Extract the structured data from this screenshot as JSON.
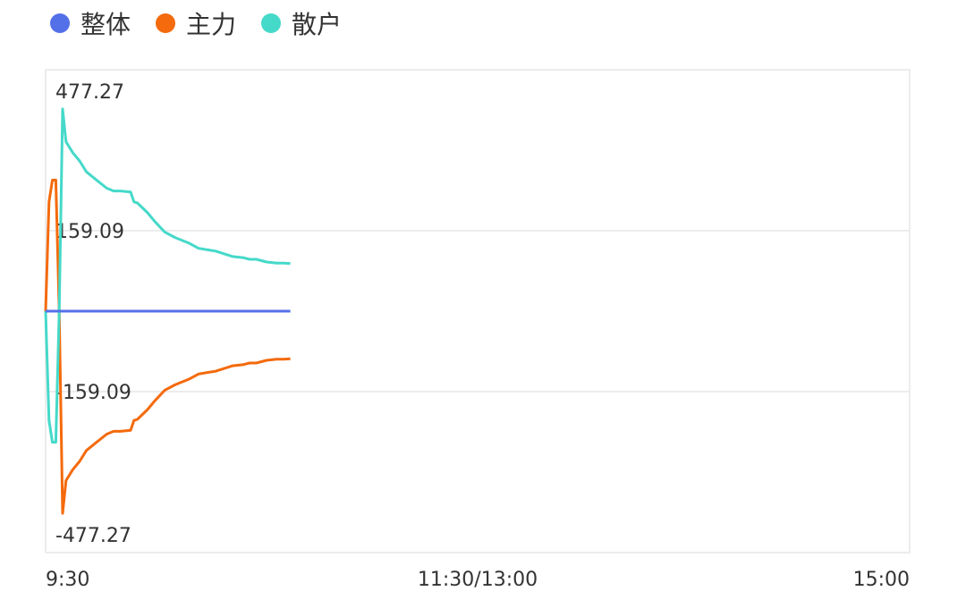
{
  "legend": [
    {
      "name": "整体",
      "color": "#5470e8"
    },
    {
      "name": "主力",
      "color": "#f46a0c"
    },
    {
      "name": "散户",
      "color": "#45d9c9"
    }
  ],
  "chart_data": {
    "type": "line",
    "x_tick_labels": [
      "9:30",
      "11:30/13:00",
      "15:00"
    ],
    "y_tick_labels": [
      "477.27",
      "159.09",
      "-159.09",
      "-477.27"
    ],
    "ylim": [
      -477.27,
      477.27
    ],
    "x_minutes_domain": [
      0,
      240
    ],
    "series": [
      {
        "name": "整体",
        "color": "#5470e8",
        "t": [
          0,
          72
        ],
        "values": [
          0,
          0
        ]
      },
      {
        "name": "主力",
        "color": "#f46a0c",
        "t": [
          0,
          1,
          2,
          3,
          4,
          5,
          6,
          8,
          10,
          12,
          15,
          18,
          20,
          22,
          25,
          26,
          27,
          30,
          32,
          35,
          38,
          40,
          42,
          45,
          48,
          50,
          55,
          58,
          60,
          62,
          65,
          68,
          70,
          72
        ],
        "values": [
          0,
          200,
          240,
          240,
          0,
          -370,
          -310,
          -290,
          -275,
          -255,
          -240,
          -225,
          -220,
          -220,
          -218,
          -200,
          -198,
          -180,
          -165,
          -145,
          -135,
          -130,
          -125,
          -115,
          -112,
          -110,
          -100,
          -98,
          -95,
          -95,
          -90,
          -88,
          -88,
          -87
        ]
      },
      {
        "name": "散户",
        "color": "#45d9c9",
        "t": [
          0,
          1,
          2,
          3,
          4,
          5,
          6,
          8,
          10,
          12,
          15,
          18,
          20,
          22,
          25,
          26,
          27,
          30,
          32,
          35,
          38,
          40,
          42,
          45,
          48,
          50,
          55,
          58,
          60,
          62,
          65,
          68,
          70,
          72
        ],
        "values": [
          0,
          -200,
          -240,
          -240,
          0,
          370,
          310,
          290,
          275,
          255,
          240,
          225,
          220,
          220,
          218,
          200,
          198,
          180,
          165,
          145,
          135,
          130,
          125,
          115,
          112,
          110,
          100,
          98,
          95,
          95,
          90,
          88,
          88,
          87
        ]
      }
    ]
  }
}
